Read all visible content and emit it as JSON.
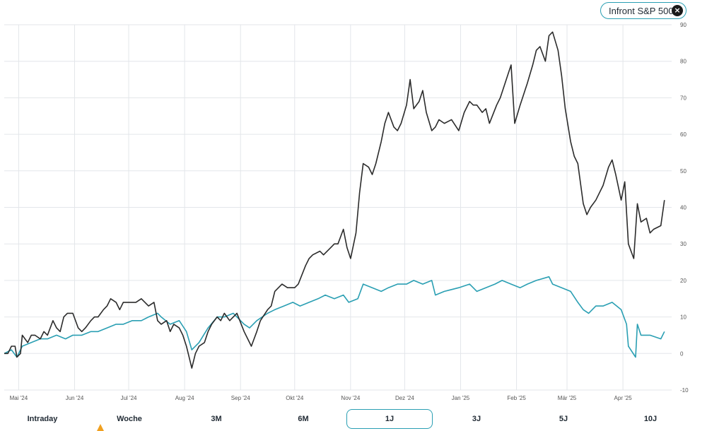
{
  "compare_chip": {
    "label": "Infront S&P 500",
    "close_icon": "×"
  },
  "colors": {
    "primary_series": "#2b2b2b",
    "benchmark_series": "#2a9fb3",
    "grid": "#e3e6ea",
    "chip_border": "#2a9fb3"
  },
  "range_tabs": [
    {
      "label": "Intraday",
      "active": false
    },
    {
      "label": "Woche",
      "active": false
    },
    {
      "label": "3M",
      "active": false
    },
    {
      "label": "6M",
      "active": false
    },
    {
      "label": "1J",
      "active": true
    },
    {
      "label": "3J",
      "active": false
    },
    {
      "label": "5J",
      "active": false
    },
    {
      "label": "10J",
      "active": false
    }
  ],
  "chart_data": {
    "type": "line",
    "title": "",
    "xlabel": "",
    "ylabel": "",
    "x_domain": [
      "2024-04-23",
      "2025-04-28"
    ],
    "ylim": [
      -10,
      90
    ],
    "y_ticks": [
      -10,
      0,
      10,
      20,
      30,
      40,
      50,
      60,
      70,
      80,
      90
    ],
    "x_ticks": [
      {
        "date": "2024-05-01",
        "label": "Mai '24"
      },
      {
        "date": "2024-06-01",
        "label": "Jun '24"
      },
      {
        "date": "2024-07-01",
        "label": "Jul '24"
      },
      {
        "date": "2024-08-01",
        "label": "Aug '24"
      },
      {
        "date": "2024-09-01",
        "label": "Sep '24"
      },
      {
        "date": "2024-10-01",
        "label": "Okt '24"
      },
      {
        "date": "2024-11-01",
        "label": "Nov '24"
      },
      {
        "date": "2024-12-01",
        "label": "Dez '24"
      },
      {
        "date": "2025-01-01",
        "label": "Jan '25"
      },
      {
        "date": "2025-02-01",
        "label": "Feb '25"
      },
      {
        "date": "2025-03-01",
        "label": "Mär '25"
      },
      {
        "date": "2025-04-01",
        "label": "Apr '25"
      }
    ],
    "grid": true,
    "legend": "none",
    "series": [
      {
        "color": "#2b2b2b",
        "points": [
          [
            "2024-04-23",
            0
          ],
          [
            "2024-04-25",
            0
          ],
          [
            "2024-04-27",
            2
          ],
          [
            "2024-04-29",
            2
          ],
          [
            "2024-04-30",
            -1
          ],
          [
            "2024-05-02",
            0
          ],
          [
            "2024-05-03",
            5
          ],
          [
            "2024-05-06",
            3
          ],
          [
            "2024-05-08",
            5
          ],
          [
            "2024-05-10",
            5
          ],
          [
            "2024-05-13",
            4
          ],
          [
            "2024-05-15",
            6
          ],
          [
            "2024-05-17",
            5
          ],
          [
            "2024-05-20",
            9
          ],
          [
            "2024-05-22",
            7
          ],
          [
            "2024-05-24",
            6
          ],
          [
            "2024-05-26",
            10
          ],
          [
            "2024-05-28",
            11
          ],
          [
            "2024-05-31",
            11
          ],
          [
            "2024-06-03",
            7
          ],
          [
            "2024-06-05",
            6
          ],
          [
            "2024-06-07",
            7
          ],
          [
            "2024-06-10",
            9
          ],
          [
            "2024-06-12",
            10
          ],
          [
            "2024-06-14",
            10
          ],
          [
            "2024-06-17",
            12
          ],
          [
            "2024-06-19",
            13
          ],
          [
            "2024-06-21",
            15
          ],
          [
            "2024-06-24",
            14
          ],
          [
            "2024-06-26",
            12
          ],
          [
            "2024-06-28",
            14
          ],
          [
            "2024-07-01",
            14
          ],
          [
            "2024-07-03",
            14
          ],
          [
            "2024-07-05",
            14
          ],
          [
            "2024-07-08",
            15
          ],
          [
            "2024-07-10",
            14
          ],
          [
            "2024-07-12",
            13
          ],
          [
            "2024-07-15",
            14
          ],
          [
            "2024-07-17",
            9
          ],
          [
            "2024-07-19",
            8
          ],
          [
            "2024-07-22",
            9
          ],
          [
            "2024-07-24",
            6
          ],
          [
            "2024-07-26",
            8
          ],
          [
            "2024-07-29",
            7
          ],
          [
            "2024-07-31",
            5
          ],
          [
            "2024-08-02",
            2
          ],
          [
            "2024-08-05",
            -4
          ],
          [
            "2024-08-07",
            0
          ],
          [
            "2024-08-09",
            2
          ],
          [
            "2024-08-12",
            3
          ],
          [
            "2024-08-14",
            6
          ],
          [
            "2024-08-16",
            8
          ],
          [
            "2024-08-19",
            10
          ],
          [
            "2024-08-21",
            9
          ],
          [
            "2024-08-23",
            11
          ],
          [
            "2024-08-26",
            9
          ],
          [
            "2024-08-28",
            10
          ],
          [
            "2024-08-30",
            11
          ],
          [
            "2024-09-03",
            6
          ],
          [
            "2024-09-05",
            4
          ],
          [
            "2024-09-07",
            2
          ],
          [
            "2024-09-10",
            6
          ],
          [
            "2024-09-12",
            9
          ],
          [
            "2024-09-16",
            12
          ],
          [
            "2024-09-18",
            13
          ],
          [
            "2024-09-20",
            17
          ],
          [
            "2024-09-24",
            19
          ],
          [
            "2024-09-27",
            18
          ],
          [
            "2024-10-01",
            18
          ],
          [
            "2024-10-03",
            19
          ],
          [
            "2024-10-07",
            24
          ],
          [
            "2024-10-09",
            26
          ],
          [
            "2024-10-11",
            27
          ],
          [
            "2024-10-15",
            28
          ],
          [
            "2024-10-17",
            27
          ],
          [
            "2024-10-21",
            29
          ],
          [
            "2024-10-23",
            30
          ],
          [
            "2024-10-25",
            30
          ],
          [
            "2024-10-28",
            34
          ],
          [
            "2024-10-30",
            29
          ],
          [
            "2024-11-01",
            26
          ],
          [
            "2024-11-04",
            33
          ],
          [
            "2024-11-06",
            44
          ],
          [
            "2024-11-08",
            52
          ],
          [
            "2024-11-11",
            51
          ],
          [
            "2024-11-13",
            49
          ],
          [
            "2024-11-15",
            52
          ],
          [
            "2024-11-18",
            58
          ],
          [
            "2024-11-20",
            63
          ],
          [
            "2024-11-22",
            66
          ],
          [
            "2024-11-25",
            62
          ],
          [
            "2024-11-27",
            61
          ],
          [
            "2024-11-29",
            63
          ],
          [
            "2024-12-02",
            68
          ],
          [
            "2024-12-04",
            75
          ],
          [
            "2024-12-06",
            67
          ],
          [
            "2024-12-09",
            69
          ],
          [
            "2024-12-11",
            72
          ],
          [
            "2024-12-13",
            66
          ],
          [
            "2024-12-16",
            61
          ],
          [
            "2024-12-18",
            62
          ],
          [
            "2024-12-20",
            64
          ],
          [
            "2024-12-23",
            63
          ],
          [
            "2024-12-27",
            64
          ],
          [
            "2024-12-31",
            61
          ],
          [
            "2025-01-03",
            66
          ],
          [
            "2025-01-06",
            69
          ],
          [
            "2025-01-08",
            68
          ],
          [
            "2025-01-10",
            68
          ],
          [
            "2025-01-13",
            66
          ],
          [
            "2025-01-15",
            67
          ],
          [
            "2025-01-17",
            63
          ],
          [
            "2025-01-21",
            68
          ],
          [
            "2025-01-23",
            70
          ],
          [
            "2025-01-27",
            76
          ],
          [
            "2025-01-29",
            79
          ],
          [
            "2025-01-31",
            63
          ],
          [
            "2025-02-03",
            68
          ],
          [
            "2025-02-05",
            71
          ],
          [
            "2025-02-07",
            74
          ],
          [
            "2025-02-10",
            79
          ],
          [
            "2025-02-12",
            83
          ],
          [
            "2025-02-14",
            84
          ],
          [
            "2025-02-17",
            80
          ],
          [
            "2025-02-19",
            87
          ],
          [
            "2025-02-21",
            88
          ],
          [
            "2025-02-24",
            83
          ],
          [
            "2025-02-26",
            76
          ],
          [
            "2025-02-28",
            67
          ],
          [
            "2025-03-03",
            58
          ],
          [
            "2025-03-05",
            54
          ],
          [
            "2025-03-07",
            52
          ],
          [
            "2025-03-10",
            41
          ],
          [
            "2025-03-12",
            38
          ],
          [
            "2025-03-14",
            40
          ],
          [
            "2025-03-17",
            42
          ],
          [
            "2025-03-19",
            44
          ],
          [
            "2025-03-21",
            46
          ],
          [
            "2025-03-24",
            51
          ],
          [
            "2025-03-26",
            53
          ],
          [
            "2025-03-28",
            49
          ],
          [
            "2025-03-31",
            42
          ],
          [
            "2025-04-02",
            47
          ],
          [
            "2025-04-04",
            30
          ],
          [
            "2025-04-07",
            26
          ],
          [
            "2025-04-09",
            41
          ],
          [
            "2025-04-11",
            36
          ],
          [
            "2025-04-14",
            37
          ],
          [
            "2025-04-16",
            33
          ],
          [
            "2025-04-18",
            34
          ],
          [
            "2025-04-22",
            35
          ],
          [
            "2025-04-24",
            42
          ]
        ]
      },
      {
        "color": "#2a9fb3",
        "points": [
          [
            "2024-04-23",
            0
          ],
          [
            "2024-04-27",
            1
          ],
          [
            "2024-04-30",
            -1
          ],
          [
            "2024-05-03",
            2
          ],
          [
            "2024-05-08",
            3
          ],
          [
            "2024-05-13",
            4
          ],
          [
            "2024-05-17",
            4
          ],
          [
            "2024-05-22",
            5
          ],
          [
            "2024-05-27",
            4
          ],
          [
            "2024-05-31",
            5
          ],
          [
            "2024-06-05",
            5
          ],
          [
            "2024-06-10",
            6
          ],
          [
            "2024-06-14",
            6
          ],
          [
            "2024-06-19",
            7
          ],
          [
            "2024-06-24",
            8
          ],
          [
            "2024-06-28",
            8
          ],
          [
            "2024-07-03",
            9
          ],
          [
            "2024-07-08",
            9
          ],
          [
            "2024-07-12",
            10
          ],
          [
            "2024-07-17",
            11
          ],
          [
            "2024-07-19",
            10
          ],
          [
            "2024-07-24",
            8
          ],
          [
            "2024-07-29",
            9
          ],
          [
            "2024-08-02",
            6
          ],
          [
            "2024-08-05",
            1
          ],
          [
            "2024-08-09",
            3
          ],
          [
            "2024-08-14",
            7
          ],
          [
            "2024-08-19",
            10
          ],
          [
            "2024-08-23",
            10
          ],
          [
            "2024-08-28",
            11
          ],
          [
            "2024-09-03",
            8
          ],
          [
            "2024-09-06",
            7
          ],
          [
            "2024-09-10",
            9
          ],
          [
            "2024-09-16",
            11
          ],
          [
            "2024-09-20",
            12
          ],
          [
            "2024-09-25",
            13
          ],
          [
            "2024-09-30",
            14
          ],
          [
            "2024-10-04",
            13
          ],
          [
            "2024-10-09",
            14
          ],
          [
            "2024-10-14",
            15
          ],
          [
            "2024-10-18",
            16
          ],
          [
            "2024-10-23",
            15
          ],
          [
            "2024-10-28",
            16
          ],
          [
            "2024-10-31",
            14
          ],
          [
            "2024-11-05",
            15
          ],
          [
            "2024-11-08",
            19
          ],
          [
            "2024-11-13",
            18
          ],
          [
            "2024-11-18",
            17
          ],
          [
            "2024-11-22",
            18
          ],
          [
            "2024-11-27",
            19
          ],
          [
            "2024-12-02",
            19
          ],
          [
            "2024-12-06",
            20
          ],
          [
            "2024-12-11",
            19
          ],
          [
            "2024-12-16",
            20
          ],
          [
            "2024-12-18",
            16
          ],
          [
            "2024-12-23",
            17
          ],
          [
            "2024-12-31",
            18
          ],
          [
            "2025-01-06",
            19
          ],
          [
            "2025-01-10",
            17
          ],
          [
            "2025-01-15",
            18
          ],
          [
            "2025-01-20",
            19
          ],
          [
            "2025-01-24",
            20
          ],
          [
            "2025-01-29",
            19
          ],
          [
            "2025-02-03",
            18
          ],
          [
            "2025-02-07",
            19
          ],
          [
            "2025-02-12",
            20
          ],
          [
            "2025-02-19",
            21
          ],
          [
            "2025-02-21",
            19
          ],
          [
            "2025-02-26",
            18
          ],
          [
            "2025-03-03",
            17
          ],
          [
            "2025-03-07",
            14
          ],
          [
            "2025-03-10",
            12
          ],
          [
            "2025-03-13",
            11
          ],
          [
            "2025-03-17",
            13
          ],
          [
            "2025-03-21",
            13
          ],
          [
            "2025-03-26",
            14
          ],
          [
            "2025-03-31",
            12
          ],
          [
            "2025-04-03",
            8
          ],
          [
            "2025-04-04",
            2
          ],
          [
            "2025-04-08",
            -1
          ],
          [
            "2025-04-09",
            8
          ],
          [
            "2025-04-11",
            5
          ],
          [
            "2025-04-16",
            5
          ],
          [
            "2025-04-22",
            4
          ],
          [
            "2025-04-24",
            6
          ]
        ]
      }
    ]
  }
}
